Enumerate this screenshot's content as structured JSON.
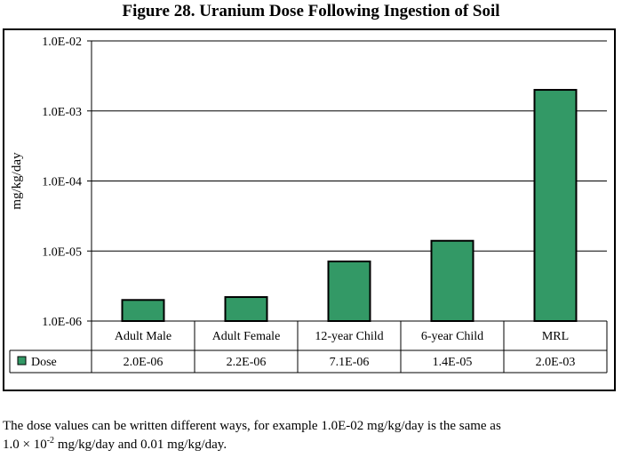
{
  "title": "Figure 28. Uranium Dose Following Ingestion of Soil",
  "chart_data": {
    "type": "bar",
    "title": "Figure 28. Uranium Dose Following Ingestion of Soil",
    "ylabel": "mg/kg/day",
    "xlabel": "",
    "yscale": "log",
    "ylim": [
      1e-06,
      0.01
    ],
    "yticks": [
      "1.0E-06",
      "1.0E-05",
      "1.0E-04",
      "1.0E-03",
      "1.0E-02"
    ],
    "grid": "horizontal major gridlines",
    "categories": [
      "Adult Male",
      "Adult Female",
      "12-year Child",
      "6-year Child",
      "MRL"
    ],
    "series": [
      {
        "name": "Dose",
        "values": [
          2e-06,
          2.2e-06,
          7.1e-06,
          1.4e-05,
          0.002
        ],
        "labels": [
          "2.0E-06",
          "2.2E-06",
          "7.1E-06",
          "1.4E-05",
          "2.0E-03"
        ],
        "color": "#339966"
      }
    ],
    "data_table": true
  },
  "caption": {
    "line1": "The dose values can be written different ways, for example 1.0E-02 mg/kg/day is the same as",
    "line2_a": "1.0 × 10",
    "line2_sup": "-2",
    "line2_b": " mg/kg/day and 0.01 mg/kg/day."
  }
}
